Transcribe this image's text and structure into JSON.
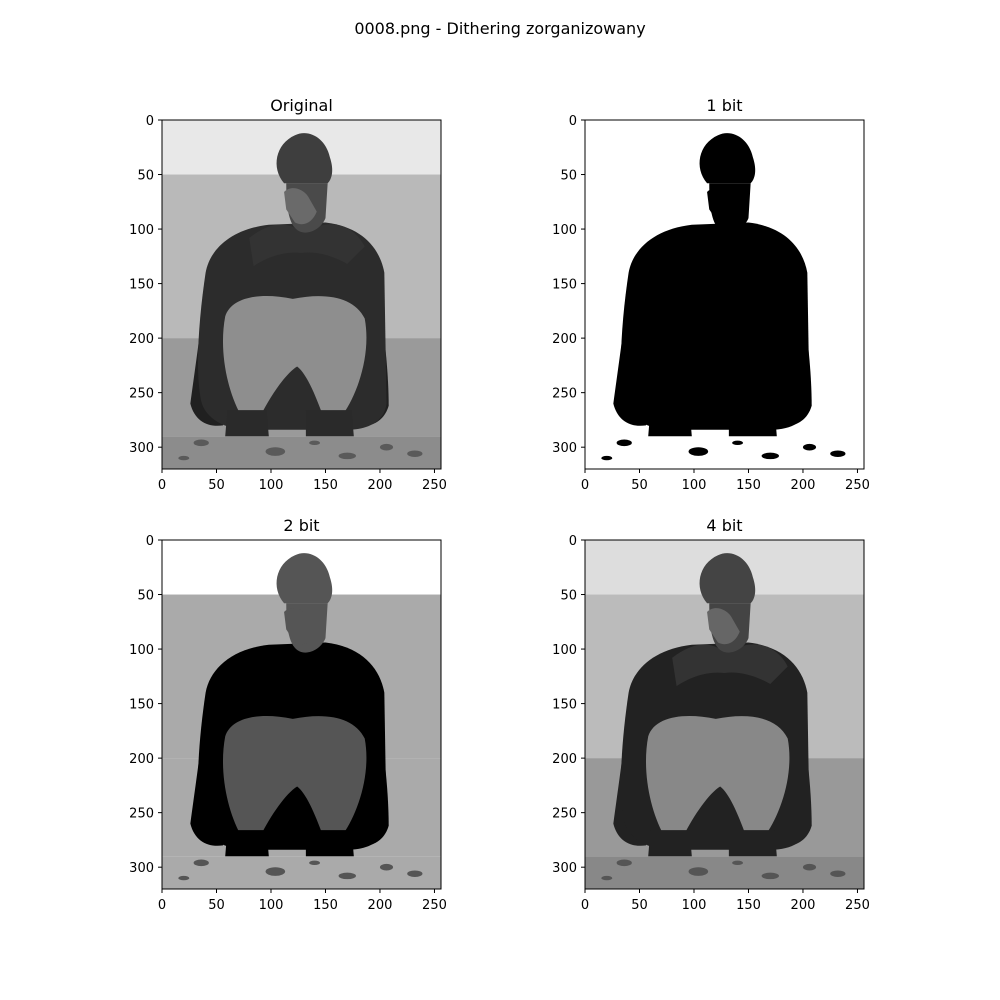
{
  "figure": {
    "suptitle": "0008.png - Dithering zorganizowany"
  },
  "chart_data": [
    {
      "type": "image",
      "title": "Original",
      "colormap": "gray",
      "xlim": [
        0,
        256
      ],
      "ylim": [
        320,
        0
      ],
      "xticks": [
        0,
        50,
        100,
        150,
        200,
        250
      ],
      "yticks": [
        0,
        50,
        100,
        150,
        200,
        250,
        300
      ],
      "grid": false
    },
    {
      "type": "image",
      "title": "1 bit",
      "colormap": "gray",
      "xlim": [
        0,
        256
      ],
      "ylim": [
        320,
        0
      ],
      "xticks": [
        0,
        50,
        100,
        150,
        200,
        250
      ],
      "yticks": [
        0,
        50,
        100,
        150,
        200,
        250,
        300
      ],
      "grid": false
    },
    {
      "type": "image",
      "title": "2 bit",
      "colormap": "gray",
      "xlim": [
        0,
        256
      ],
      "ylim": [
        320,
        0
      ],
      "xticks": [
        0,
        50,
        100,
        150,
        200,
        250
      ],
      "yticks": [
        0,
        50,
        100,
        150,
        200,
        250,
        300
      ],
      "grid": false
    },
    {
      "type": "image",
      "title": "4 bit",
      "colormap": "gray",
      "xlim": [
        0,
        256
      ],
      "ylim": [
        320,
        0
      ],
      "xticks": [
        0,
        50,
        100,
        150,
        200,
        250
      ],
      "yticks": [
        0,
        50,
        100,
        150,
        200,
        250,
        300
      ],
      "grid": false
    }
  ]
}
